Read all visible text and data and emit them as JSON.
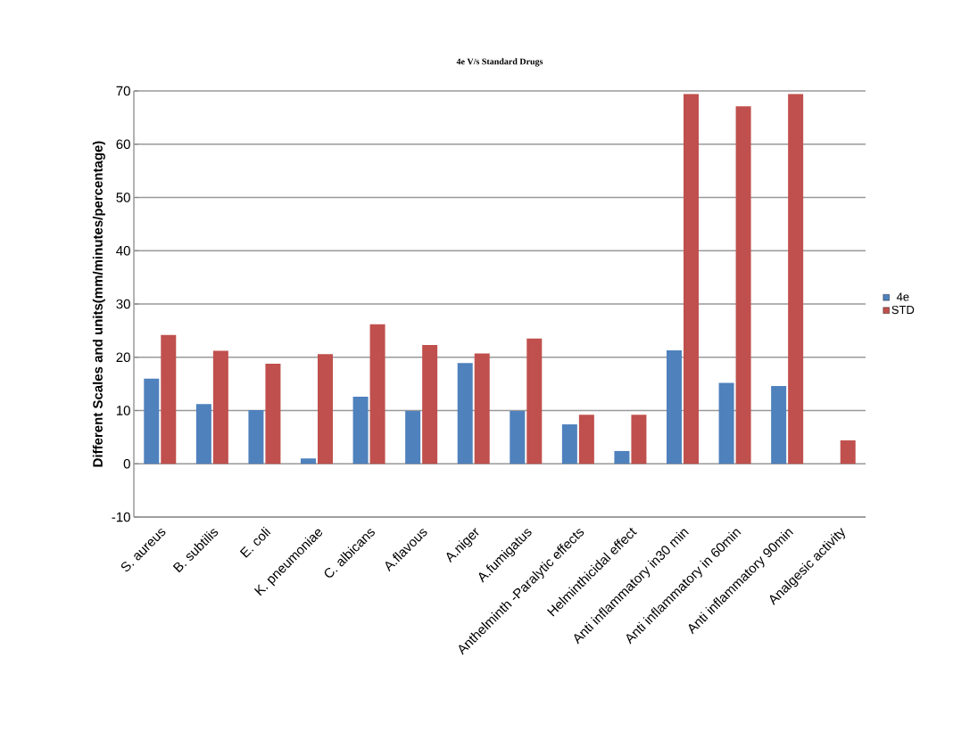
{
  "chart_data": {
    "type": "bar",
    "title": "4e V/s Standard Drugs",
    "ylabel": "Different Scales and units(mm/minutes/percentage)",
    "categories": [
      "S. aureus",
      "B. subtilis",
      "E. coli",
      "K. pneumoniae",
      "C. albicans",
      "A.flavous",
      "A.niger",
      "A.fumigatus",
      "Anthelminth -Paralytic effects",
      "Helminthicidal effect",
      "Anti inflammatory in30 min",
      "Anti inflammatory in 60min",
      "Anti inflammatory 90min",
      "Analgesic activity"
    ],
    "series": [
      {
        "name": "4e",
        "color": "#4f81bd",
        "values": [
          16,
          11.2,
          10.1,
          1,
          12.6,
          9.9,
          18.9,
          9.9,
          7.4,
          2.4,
          21.3,
          15.2,
          14.6,
          0
        ]
      },
      {
        "name": "STD",
        "color": "#c0504d",
        "values": [
          24.2,
          21.2,
          18.8,
          20.6,
          26.2,
          22.3,
          20.7,
          23.5,
          9.2,
          9.2,
          69.4,
          67.1,
          69.4,
          4.4
        ]
      }
    ],
    "ylim": [
      -10,
      70
    ],
    "yticks": [
      -10,
      0,
      10,
      20,
      30,
      40,
      50,
      60,
      70
    ],
    "grid": "y",
    "legend": "right"
  }
}
